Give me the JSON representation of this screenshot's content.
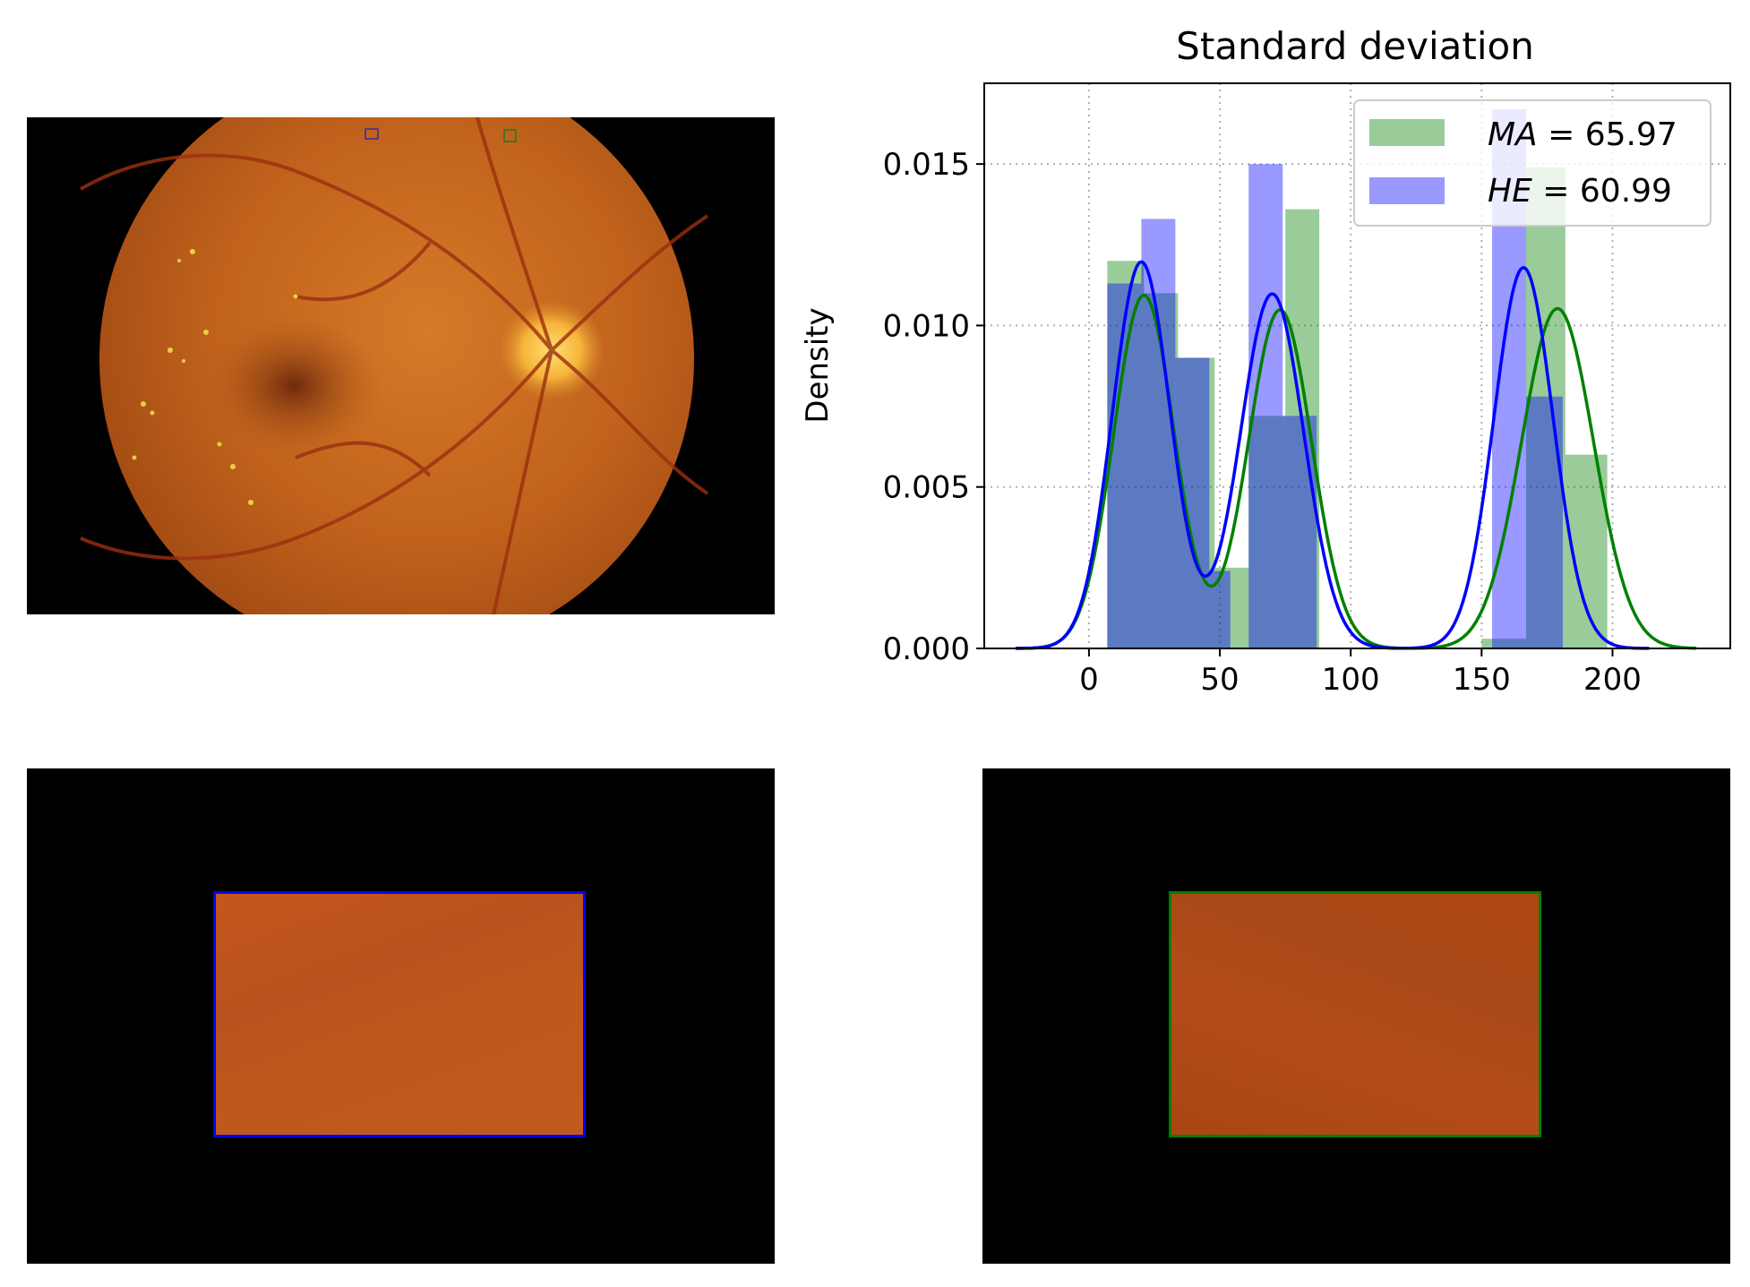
{
  "colors": {
    "ma": "#008000",
    "he": "#0000ff",
    "ma_hist": "#008000",
    "he_hist": "#0000ff",
    "fundus_orange": "#c8641e",
    "background": "#000000"
  },
  "figure": {
    "panels": [
      "fundus-image",
      "std-density-chart",
      "he-patch",
      "ma-patch"
    ]
  },
  "chart_data": {
    "type": "bar",
    "title": "Standard deviation",
    "xlabel": "",
    "ylabel": "Density",
    "xlim": [
      -40,
      245
    ],
    "ylim": [
      0,
      0.0175
    ],
    "xticks": [
      0,
      50,
      100,
      150,
      200
    ],
    "xtick_labels": [
      "0",
      "50",
      "100",
      "150",
      "200"
    ],
    "yticks": [
      0,
      0.005,
      0.01,
      0.015
    ],
    "ytick_labels": [
      "0.000",
      "0.005",
      "0.010",
      "0.015"
    ],
    "grid": true,
    "legend_placement": "top-right",
    "legend": [
      {
        "var": "MA",
        "eq": " = 65.97"
      },
      {
        "var": "HE",
        "eq": " = 60.99"
      }
    ],
    "hist_series": [
      {
        "name": "MA",
        "color": "#008000",
        "bins": [
          {
            "x0": 7,
            "x1": 21,
            "y": 0.012
          },
          {
            "x0": 21,
            "x1": 34,
            "y": 0.011
          },
          {
            "x0": 34,
            "x1": 48,
            "y": 0.009
          },
          {
            "x0": 48,
            "x1": 61,
            "y": 0.0025
          },
          {
            "x0": 61,
            "x1": 75,
            "y": 0.0072
          },
          {
            "x0": 75,
            "x1": 88,
            "y": 0.0136
          },
          {
            "x0": 150,
            "x1": 167,
            "y": 0.0003
          },
          {
            "x0": 167,
            "x1": 182,
            "y": 0.0149
          },
          {
            "x0": 182,
            "x1": 198,
            "y": 0.006
          }
        ]
      },
      {
        "name": "HE",
        "color": "#0000ff",
        "bins": [
          {
            "x0": 7,
            "x1": 20,
            "y": 0.0113
          },
          {
            "x0": 20,
            "x1": 33,
            "y": 0.0133
          },
          {
            "x0": 33,
            "x1": 46,
            "y": 0.009
          },
          {
            "x0": 46,
            "x1": 54,
            "y": 0.0024
          },
          {
            "x0": 61,
            "x1": 74,
            "y": 0.015
          },
          {
            "x0": 74,
            "x1": 87,
            "y": 0.0072
          },
          {
            "x0": 154,
            "x1": 167,
            "y": 0.0167
          },
          {
            "x0": 167,
            "x1": 181,
            "y": 0.0078
          }
        ]
      }
    ],
    "kde_series": [
      {
        "name": "MA",
        "color": "#008000",
        "x_range": [
          -28,
          232
        ],
        "components": [
          {
            "w": 0.318,
            "mu": 21,
            "sigma": 11.6
          },
          {
            "w": 0.318,
            "mu": 73,
            "sigma": 12.1
          },
          {
            "w": 0.364,
            "mu": 179,
            "sigma": 13.8
          }
        ]
      },
      {
        "name": "HE",
        "color": "#0000ff",
        "x_range": [
          -28,
          214
        ],
        "components": [
          {
            "w": 0.333,
            "mu": 20,
            "sigma": 11.1
          },
          {
            "w": 0.333,
            "mu": 70,
            "sigma": 12.1
          },
          {
            "w": 0.334,
            "mu": 166,
            "sigma": 11.3
          }
        ]
      }
    ]
  }
}
